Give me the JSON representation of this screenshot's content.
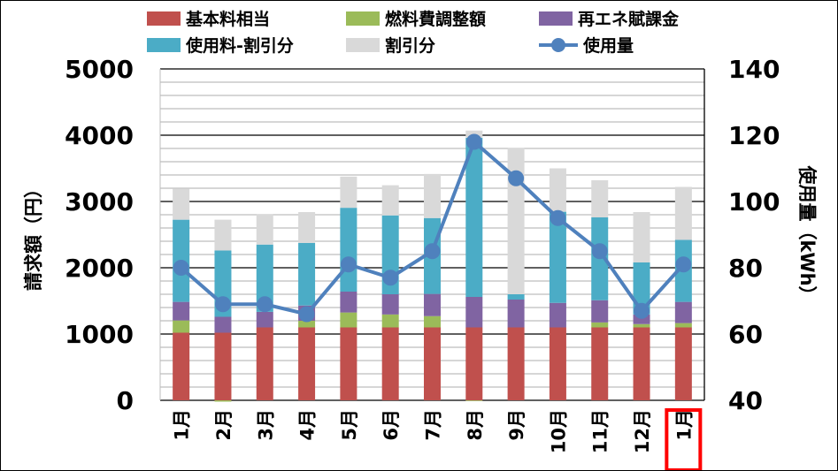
{
  "chart_data": {
    "type": "bar",
    "stacked": true,
    "categories": [
      "1月",
      "2月",
      "3月",
      "4月",
      "5月",
      "6月",
      "7月",
      "8月",
      "9月",
      "10月",
      "11月",
      "12月",
      "1月"
    ],
    "highlighted_category_index": 12,
    "highlight_color": "#FF0000",
    "ylabel": "請求額（円）",
    "ylabel_right": "使用量（kWh）",
    "ylim": [
      0,
      5000
    ],
    "yticks": [
      0,
      1000,
      2000,
      3000,
      4000,
      5000
    ],
    "ylim_right": [
      40,
      140
    ],
    "yticks_right": [
      40,
      60,
      80,
      100,
      120,
      140
    ],
    "grid": true,
    "legend_position": "top",
    "series": [
      {
        "name": "基本料相当",
        "type": "bar",
        "color": "#C0504D",
        "values": [
          1020,
          1020,
          1100,
          1100,
          1100,
          1100,
          1100,
          1100,
          1100,
          1100,
          1100,
          1100,
          1100
        ]
      },
      {
        "name": "燃料費調整額",
        "type": "bar",
        "color": "#9BBB59",
        "values": [
          185,
          -20,
          0,
          100,
          225,
          195,
          170,
          -10,
          0,
          0,
          75,
          50,
          65
        ]
      },
      {
        "name": "再エネ賦課金",
        "type": "bar",
        "color": "#8064A2",
        "values": [
          280,
          240,
          235,
          230,
          315,
          305,
          335,
          460,
          420,
          370,
          335,
          145,
          320
        ]
      },
      {
        "name": "使用料-割引分",
        "type": "bar",
        "color": "#4BACC6",
        "values": [
          1240,
          1000,
          1015,
          945,
          1265,
          1190,
          1145,
          2400,
          80,
          1375,
          1250,
          785,
          935
        ]
      },
      {
        "name": "割引分",
        "type": "bar",
        "color": "#D9D9D9",
        "values": [
          470,
          465,
          460,
          465,
          470,
          455,
          665,
          110,
          2210,
          655,
          560,
          760,
          800
        ]
      },
      {
        "name": "使用量",
        "type": "line",
        "axis": "right",
        "color": "#4F81BD",
        "values": [
          80,
          69,
          69,
          66,
          81,
          77,
          85,
          118,
          107,
          95,
          85,
          67,
          81
        ]
      }
    ]
  }
}
